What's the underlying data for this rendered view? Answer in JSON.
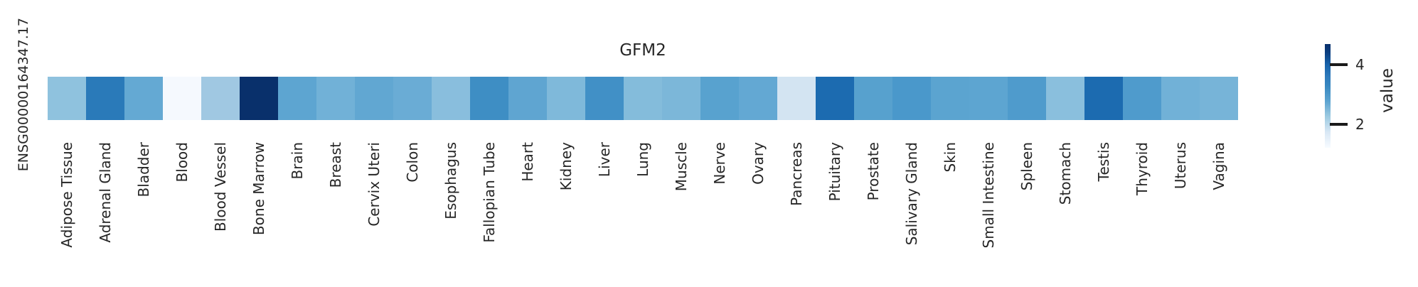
{
  "title": "GFM2",
  "row_label": "ENSG00000164347.17",
  "colorbar": {
    "label": "value",
    "ticks": [
      {
        "label": "4",
        "y_frac": 0.199
      },
      {
        "label": "2",
        "y_frac": 0.771
      }
    ],
    "gradient_top_color": "#08306b",
    "gradient_bottom_color": "#f7fbff"
  },
  "chart_data": {
    "type": "heatmap",
    "title": "GFM2",
    "colormap": "Blues",
    "rows": [
      "ENSG00000164347.17"
    ],
    "columns": [
      "Adipose Tissue",
      "Adrenal Gland",
      "Bladder",
      "Blood",
      "Blood Vessel",
      "Bone Marrow",
      "Brain",
      "Breast",
      "Cervix Uteri",
      "Colon",
      "Esophagus",
      "Fallopian Tube",
      "Heart",
      "Kidney",
      "Liver",
      "Lung",
      "Muscle",
      "Nerve",
      "Ovary",
      "Pancreas",
      "Pituitary",
      "Prostate",
      "Salivary Gland",
      "Skin",
      "Small Intestine",
      "Spleen",
      "Stomach",
      "Testis",
      "Thyroid",
      "Uterus",
      "Vagina"
    ],
    "series": [
      {
        "name": "ENSG00000164347.17",
        "values": [
          2.7,
          3.7,
          3.0,
          1.2,
          2.5,
          4.7,
          3.1,
          2.9,
          3.05,
          3.0,
          2.7,
          3.45,
          3.1,
          2.8,
          3.4,
          2.75,
          2.8,
          3.15,
          3.0,
          1.7,
          3.9,
          3.15,
          3.3,
          3.1,
          3.1,
          3.25,
          2.7,
          3.9,
          3.25,
          2.9,
          2.85
        ]
      }
    ],
    "cell_colors": [
      "#8fc2de",
      "#2a7ab9",
      "#64a9d3",
      "#f5f9fe",
      "#a0c8e2",
      "#09306b",
      "#5da5d1",
      "#71b1d7",
      "#61a7d2",
      "#6aacd5",
      "#89bedd",
      "#3e8ec4",
      "#5fa5d1",
      "#7fb9da",
      "#4190c6",
      "#84bcdb",
      "#7cb7d9",
      "#58a2cf",
      "#63a8d3",
      "#d3e4f2",
      "#1c6bb0",
      "#57a1ce",
      "#4a98cb",
      "#5ba4d0",
      "#5da5d1",
      "#4f9bcc",
      "#8abfdd",
      "#1c6bb0",
      "#4f9bcc",
      "#71b1d7",
      "#77b4d8"
    ],
    "colorbar": {
      "label": "value",
      "tick_values": [
        2,
        4
      ],
      "vmin": 1.2,
      "vmax": 4.7,
      "legend_position": "right"
    },
    "xlabel": "",
    "ylabel": "",
    "grid": false
  }
}
